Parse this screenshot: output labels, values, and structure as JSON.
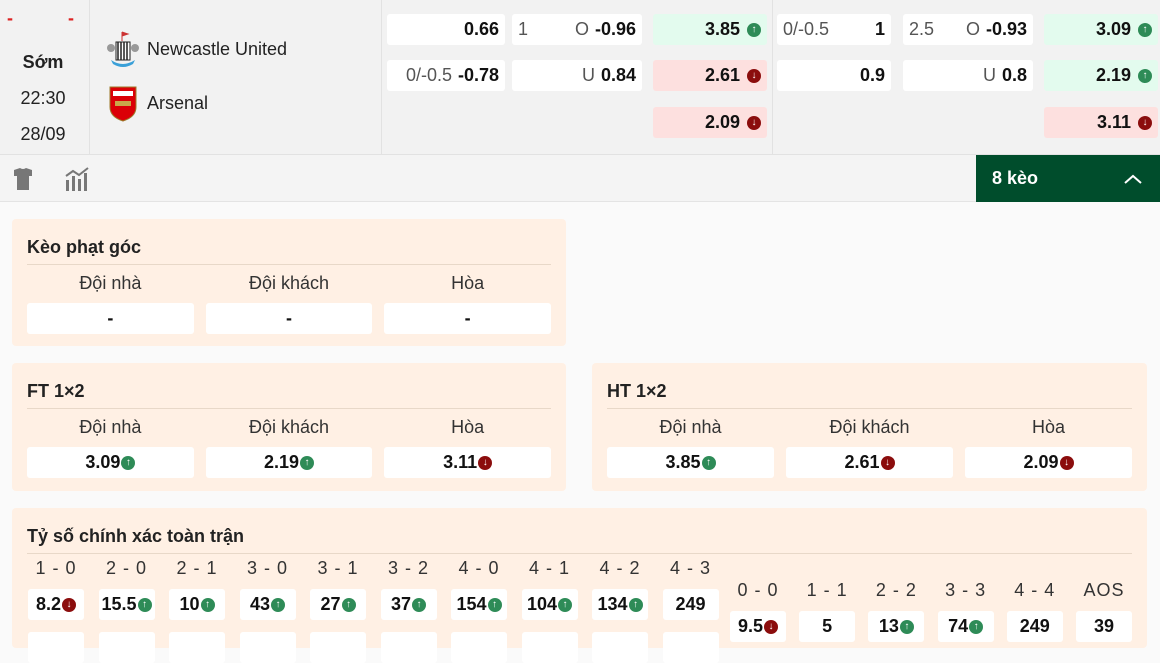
{
  "match": {
    "score_home": "-",
    "score_away": "-",
    "status": "Sớm",
    "time": "22:30",
    "date": "28/09",
    "home": "Newcastle United",
    "away": "Arsenal"
  },
  "odds": [
    [
      {
        "lbl": [
          "0.66"
        ],
        "bold": "0.66",
        "plain": []
      },
      {
        "plain": [
          "0/-0.5"
        ],
        "bold": "-0.78"
      }
    ],
    [
      {
        "plain": [
          "1",
          "O"
        ],
        "bold": "-0.96"
      },
      {
        "plain": [
          "U"
        ],
        "bold": "0.84"
      }
    ],
    [
      {
        "bold": "3.85",
        "trend": "up"
      },
      {
        "bold": "2.61",
        "trend": "down"
      },
      {
        "bold": "2.09",
        "trend": "down"
      }
    ],
    [
      {
        "plain": [
          "0/-0.5"
        ],
        "bold": "1"
      },
      {
        "plain": [],
        "bold": "0.9"
      }
    ],
    [
      {
        "plain": [
          "2.5",
          "O"
        ],
        "bold": "-0.93"
      },
      {
        "plain": [
          "U"
        ],
        "bold": "0.8"
      }
    ],
    [
      {
        "bold": "3.09",
        "trend": "up"
      },
      {
        "bold": "2.19",
        "trend": "up"
      },
      {
        "bold": "3.11",
        "trend": "down"
      }
    ]
  ],
  "toolbar": {
    "more_label": "8 kèo",
    "icons": [
      "jersey-icon",
      "stats-chart-icon",
      "chevron-up-icon"
    ]
  },
  "corner": {
    "title": "Kèo phạt góc",
    "cols": [
      {
        "h": "Đội nhà",
        "v": "-"
      },
      {
        "h": "Đội khách",
        "v": "-"
      },
      {
        "h": "Hòa",
        "v": "-"
      }
    ]
  },
  "ft": {
    "title": "FT 1×2",
    "cols": [
      {
        "h": "Đội nhà",
        "v": "3.09",
        "trend": "up"
      },
      {
        "h": "Đội khách",
        "v": "2.19",
        "trend": "up"
      },
      {
        "h": "Hòa",
        "v": "3.11",
        "trend": "down"
      }
    ]
  },
  "ht": {
    "title": "HT 1×2",
    "cols": [
      {
        "h": "Đội nhà",
        "v": "3.85",
        "trend": "up"
      },
      {
        "h": "Đội khách",
        "v": "2.61",
        "trend": "down"
      },
      {
        "h": "Hòa",
        "v": "2.09",
        "trend": "down"
      }
    ]
  },
  "correct": {
    "title": "Tỷ số chính xác toàn trận",
    "home": [
      {
        "s": "1 - 0",
        "v": "8.2",
        "trend": "down"
      },
      {
        "s": "2 - 0",
        "v": "15.5",
        "trend": "up"
      },
      {
        "s": "2 - 1",
        "v": "10",
        "trend": "up"
      },
      {
        "s": "3 - 0",
        "v": "43",
        "trend": "up"
      },
      {
        "s": "3 - 1",
        "v": "27",
        "trend": "up"
      },
      {
        "s": "3 - 2",
        "v": "37",
        "trend": "up"
      },
      {
        "s": "4 - 0",
        "v": "154",
        "trend": "up"
      },
      {
        "s": "4 - 1",
        "v": "104",
        "trend": "up"
      },
      {
        "s": "4 - 2",
        "v": "134",
        "trend": "up"
      },
      {
        "s": "4 - 3",
        "v": "249"
      }
    ],
    "draw": [
      {
        "s": "0 - 0",
        "v": "9.5",
        "trend": "down"
      },
      {
        "s": "1 - 1",
        "v": "5"
      },
      {
        "s": "2 - 2",
        "v": "13",
        "trend": "up"
      },
      {
        "s": "3 - 3",
        "v": "74",
        "trend": "up"
      },
      {
        "s": "4 - 4",
        "v": "249"
      },
      {
        "s": "AOS",
        "v": "39"
      }
    ],
    "away_row_trends": [
      "down",
      "down",
      "down",
      "down",
      "",
      "up",
      "down",
      "",
      "up",
      "up"
    ]
  },
  "colors": {
    "accent": "#004d2c",
    "up_bg": "#e3fbee",
    "down_bg": "#fde0df",
    "up_icon": "#2e8b57",
    "down_icon": "#8b0d0d",
    "card_bg": "#fff0e4"
  }
}
